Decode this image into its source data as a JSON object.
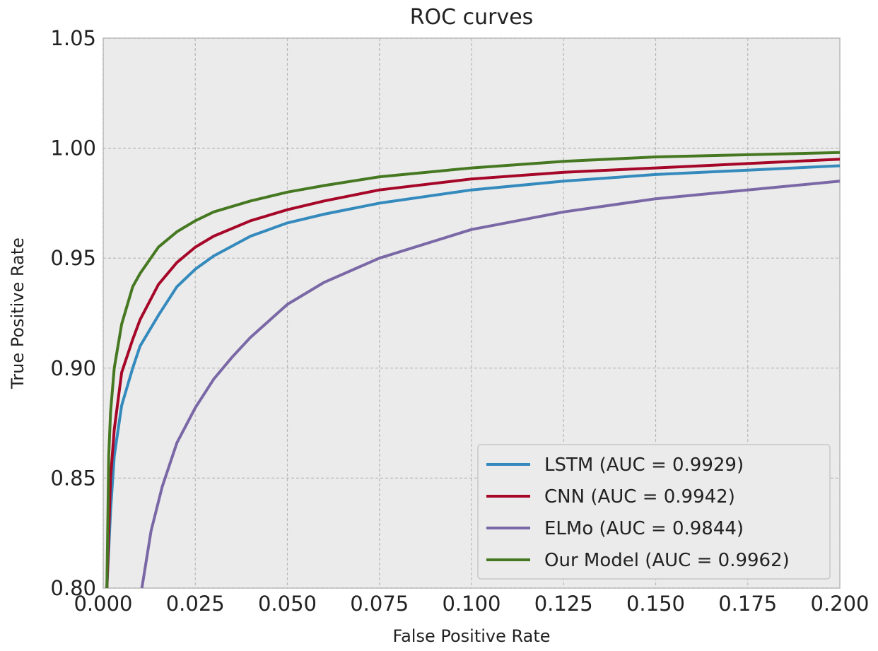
{
  "chart_data": {
    "type": "line",
    "title": "ROC curves",
    "xlabel": "False Positive Rate",
    "ylabel": "True Positive Rate",
    "xlim": [
      0.0,
      0.2
    ],
    "ylim": [
      0.8,
      1.05
    ],
    "xticks": [
      "0.000",
      "0.025",
      "0.050",
      "0.075",
      "0.100",
      "0.125",
      "0.150",
      "0.175",
      "0.200"
    ],
    "yticks": [
      "0.80",
      "0.85",
      "0.90",
      "0.95",
      "1.00",
      "1.05"
    ],
    "grid": true,
    "legend_position": "bottom-right",
    "series": [
      {
        "name": "LSTM (AUC = 0.9929)",
        "color": "#348abd",
        "points": [
          [
            0.001,
            0.8
          ],
          [
            0.002,
            0.835
          ],
          [
            0.003,
            0.86
          ],
          [
            0.005,
            0.883
          ],
          [
            0.008,
            0.9
          ],
          [
            0.01,
            0.91
          ],
          [
            0.015,
            0.924
          ],
          [
            0.02,
            0.937
          ],
          [
            0.025,
            0.945
          ],
          [
            0.03,
            0.951
          ],
          [
            0.04,
            0.96
          ],
          [
            0.05,
            0.966
          ],
          [
            0.06,
            0.97
          ],
          [
            0.075,
            0.975
          ],
          [
            0.1,
            0.981
          ],
          [
            0.125,
            0.985
          ],
          [
            0.15,
            0.988
          ],
          [
            0.175,
            0.99
          ],
          [
            0.2,
            0.992
          ]
        ]
      },
      {
        "name": "CNN (AUC = 0.9942)",
        "color": "#a60628",
        "points": [
          [
            0.001,
            0.8
          ],
          [
            0.002,
            0.85
          ],
          [
            0.003,
            0.872
          ],
          [
            0.005,
            0.898
          ],
          [
            0.008,
            0.913
          ],
          [
            0.01,
            0.922
          ],
          [
            0.015,
            0.938
          ],
          [
            0.02,
            0.948
          ],
          [
            0.025,
            0.955
          ],
          [
            0.03,
            0.96
          ],
          [
            0.04,
            0.967
          ],
          [
            0.05,
            0.972
          ],
          [
            0.06,
            0.976
          ],
          [
            0.075,
            0.981
          ],
          [
            0.1,
            0.986
          ],
          [
            0.125,
            0.989
          ],
          [
            0.15,
            0.991
          ],
          [
            0.175,
            0.993
          ],
          [
            0.2,
            0.995
          ]
        ]
      },
      {
        "name": "ELMo (AUC = 0.9844)",
        "color": "#7a68a6",
        "points": [
          [
            0.0105,
            0.8
          ],
          [
            0.013,
            0.826
          ],
          [
            0.016,
            0.846
          ],
          [
            0.02,
            0.866
          ],
          [
            0.025,
            0.882
          ],
          [
            0.03,
            0.895
          ],
          [
            0.035,
            0.905
          ],
          [
            0.04,
            0.914
          ],
          [
            0.05,
            0.929
          ],
          [
            0.06,
            0.939
          ],
          [
            0.075,
            0.95
          ],
          [
            0.1,
            0.963
          ],
          [
            0.125,
            0.971
          ],
          [
            0.15,
            0.977
          ],
          [
            0.175,
            0.981
          ],
          [
            0.2,
            0.985
          ]
        ]
      },
      {
        "name": "Our Model (AUC = 0.9962)",
        "color": "#467821",
        "points": [
          [
            0.001,
            0.8
          ],
          [
            0.0015,
            0.86
          ],
          [
            0.002,
            0.88
          ],
          [
            0.003,
            0.9
          ],
          [
            0.005,
            0.92
          ],
          [
            0.008,
            0.937
          ],
          [
            0.01,
            0.943
          ],
          [
            0.015,
            0.955
          ],
          [
            0.02,
            0.962
          ],
          [
            0.025,
            0.967
          ],
          [
            0.03,
            0.971
          ],
          [
            0.04,
            0.976
          ],
          [
            0.05,
            0.98
          ],
          [
            0.06,
            0.983
          ],
          [
            0.075,
            0.987
          ],
          [
            0.1,
            0.991
          ],
          [
            0.125,
            0.994
          ],
          [
            0.15,
            0.996
          ],
          [
            0.175,
            0.997
          ],
          [
            0.2,
            0.998
          ]
        ]
      }
    ]
  }
}
